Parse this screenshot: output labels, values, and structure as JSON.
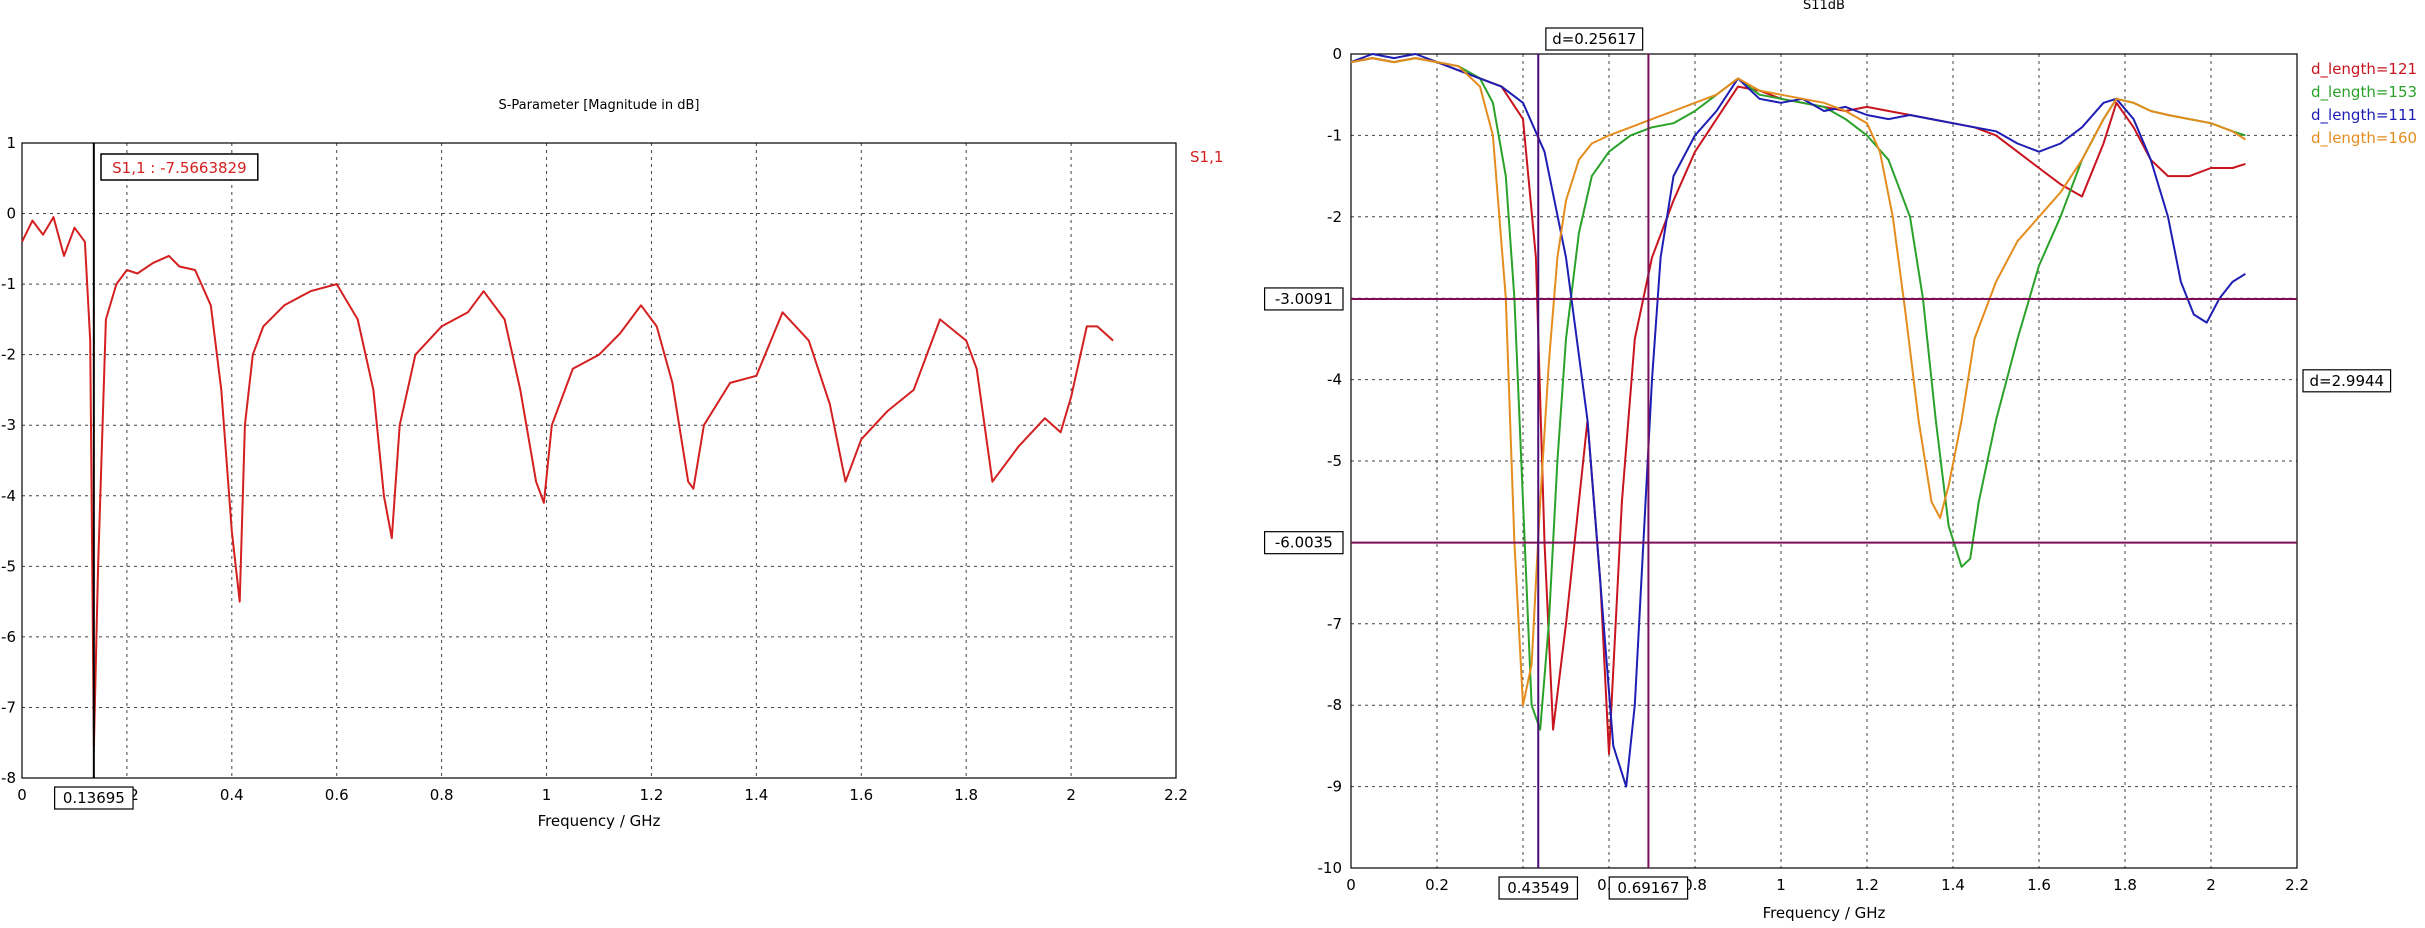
{
  "chart_data": [
    {
      "type": "line",
      "title": "S-Parameter [Magnitude in dB]",
      "xlabel": "Frequency / GHz",
      "ylabel": "",
      "xlim": [
        0,
        2.2
      ],
      "ylim": [
        -8,
        1
      ],
      "xticks": [
        "0",
        "0.2",
        "0.4",
        "0.6",
        "0.8",
        "1",
        "1.2",
        "1.4",
        "1.6",
        "1.8",
        "2",
        "2.2"
      ],
      "yticks": [
        "1",
        "0",
        "-1",
        "-2",
        "-3",
        "-4",
        "-5",
        "-6",
        "-7",
        "-8"
      ],
      "grid": true,
      "legend": "top-right",
      "series": [
        {
          "name": "S1,1",
          "color": "#d42020",
          "x": [
            0,
            0.02,
            0.04,
            0.06,
            0.08,
            0.1,
            0.12,
            0.13,
            0.137,
            0.145,
            0.16,
            0.18,
            0.2,
            0.22,
            0.25,
            0.28,
            0.3,
            0.33,
            0.36,
            0.38,
            0.4,
            0.415,
            0.425,
            0.44,
            0.46,
            0.5,
            0.55,
            0.6,
            0.64,
            0.67,
            0.69,
            0.705,
            0.72,
            0.75,
            0.8,
            0.85,
            0.88,
            0.92,
            0.95,
            0.98,
            0.995,
            1.01,
            1.05,
            1.1,
            1.14,
            1.18,
            1.21,
            1.24,
            1.27,
            1.28,
            1.3,
            1.35,
            1.4,
            1.45,
            1.5,
            1.54,
            1.57,
            1.6,
            1.65,
            1.7,
            1.75,
            1.8,
            1.82,
            1.85,
            1.9,
            1.95,
            1.98,
            2.0,
            2.03,
            2.05,
            2.08
          ],
          "y": [
            -0.4,
            -0.1,
            -0.3,
            -0.05,
            -0.6,
            -0.2,
            -0.4,
            -1.8,
            -7.55,
            -5.0,
            -1.5,
            -1.0,
            -0.8,
            -0.85,
            -0.7,
            -0.6,
            -0.75,
            -0.8,
            -1.3,
            -2.5,
            -4.5,
            -5.5,
            -3.0,
            -2.0,
            -1.6,
            -1.3,
            -1.1,
            -1.0,
            -1.5,
            -2.5,
            -4.0,
            -4.6,
            -3.0,
            -2.0,
            -1.6,
            -1.4,
            -1.1,
            -1.5,
            -2.5,
            -3.8,
            -4.1,
            -3.0,
            -2.2,
            -2.0,
            -1.7,
            -1.3,
            -1.6,
            -2.4,
            -3.8,
            -3.9,
            -3.0,
            -2.4,
            -2.3,
            -1.4,
            -1.8,
            -2.7,
            -3.8,
            -3.2,
            -2.8,
            -2.5,
            -1.5,
            -1.8,
            -2.2,
            -3.8,
            -3.3,
            -2.9,
            -3.1,
            -2.6,
            -1.6,
            -1.6,
            -1.8
          ]
        }
      ],
      "markers": [
        {
          "x": 0.13695,
          "label": "0.13695"
        },
        {
          "label": "S1,1 : -7.5663829"
        }
      ]
    },
    {
      "type": "line",
      "title": "S11dB",
      "xlabel": "Frequency / GHz",
      "ylabel": "",
      "xlim": [
        0,
        2.2
      ],
      "ylim": [
        -10,
        0
      ],
      "xticks": [
        "0",
        "0.2",
        "0.4",
        "0.6",
        "0.8",
        "1",
        "1.2",
        "1.4",
        "1.6",
        "1.8",
        "2",
        "2.2"
      ],
      "yticks": [
        "0",
        "-1",
        "-2",
        "-3",
        "-4",
        "-5",
        "-6",
        "-7",
        "-8",
        "-9",
        "-10"
      ],
      "grid": true,
      "legend": "top-right",
      "series": [
        {
          "name": "d_length=121",
          "color": "#c8141e",
          "x": [
            0,
            0.05,
            0.1,
            0.15,
            0.2,
            0.25,
            0.3,
            0.35,
            0.4,
            0.43,
            0.45,
            0.47,
            0.5,
            0.55,
            0.58,
            0.6,
            0.63,
            0.66,
            0.7,
            0.75,
            0.8,
            0.85,
            0.9,
            0.95,
            1.0,
            1.05,
            1.1,
            1.15,
            1.2,
            1.25,
            1.3,
            1.35,
            1.4,
            1.45,
            1.5,
            1.55,
            1.6,
            1.65,
            1.7,
            1.75,
            1.78,
            1.82,
            1.86,
            1.9,
            1.95,
            2.0,
            2.05,
            2.08
          ],
          "y": [
            -0.1,
            -0.05,
            -0.1,
            -0.05,
            -0.1,
            -0.2,
            -0.3,
            -0.4,
            -0.8,
            -2.5,
            -6.0,
            -8.3,
            -7.0,
            -4.5,
            -6.5,
            -8.6,
            -5.5,
            -3.5,
            -2.5,
            -1.8,
            -1.2,
            -0.8,
            -0.4,
            -0.45,
            -0.55,
            -0.6,
            -0.65,
            -0.7,
            -0.65,
            -0.7,
            -0.75,
            -0.8,
            -0.85,
            -0.9,
            -1.0,
            -1.2,
            -1.4,
            -1.6,
            -1.75,
            -1.1,
            -0.6,
            -0.9,
            -1.3,
            -1.5,
            -1.5,
            -1.4,
            -1.4,
            -1.35
          ]
        },
        {
          "name": "d_length=153",
          "color": "#2aa22a",
          "x": [
            0,
            0.05,
            0.1,
            0.15,
            0.2,
            0.25,
            0.3,
            0.33,
            0.36,
            0.38,
            0.4,
            0.42,
            0.44,
            0.46,
            0.48,
            0.5,
            0.53,
            0.56,
            0.6,
            0.65,
            0.7,
            0.75,
            0.8,
            0.85,
            0.9,
            0.95,
            1.0,
            1.05,
            1.1,
            1.15,
            1.2,
            1.25,
            1.3,
            1.33,
            1.36,
            1.39,
            1.42,
            1.44,
            1.46,
            1.5,
            1.55,
            1.6,
            1.65,
            1.7,
            1.75,
            1.78,
            1.82,
            1.86,
            1.9,
            1.95,
            2.0,
            2.05,
            2.08
          ],
          "y": [
            -0.1,
            -0.05,
            -0.1,
            -0.05,
            -0.1,
            -0.15,
            -0.3,
            -0.6,
            -1.5,
            -3.0,
            -5.5,
            -8.0,
            -8.3,
            -7.0,
            -5.0,
            -3.5,
            -2.2,
            -1.5,
            -1.2,
            -1.0,
            -0.9,
            -0.85,
            -0.7,
            -0.5,
            -0.3,
            -0.5,
            -0.55,
            -0.6,
            -0.65,
            -0.8,
            -1.0,
            -1.3,
            -2.0,
            -3.0,
            -4.5,
            -5.8,
            -6.3,
            -6.2,
            -5.5,
            -4.5,
            -3.5,
            -2.6,
            -2.0,
            -1.3,
            -0.8,
            -0.55,
            -0.6,
            -0.7,
            -0.75,
            -0.8,
            -0.85,
            -0.95,
            -1.0
          ]
        },
        {
          "name": "d_length=111",
          "color": "#1e1eb4",
          "x": [
            0,
            0.05,
            0.1,
            0.15,
            0.2,
            0.25,
            0.3,
            0.35,
            0.4,
            0.45,
            0.5,
            0.55,
            0.58,
            0.61,
            0.64,
            0.66,
            0.68,
            0.7,
            0.72,
            0.75,
            0.8,
            0.85,
            0.9,
            0.95,
            1.0,
            1.05,
            1.1,
            1.15,
            1.2,
            1.25,
            1.3,
            1.35,
            1.4,
            1.45,
            1.5,
            1.55,
            1.6,
            1.65,
            1.7,
            1.75,
            1.78,
            1.82,
            1.86,
            1.9,
            1.93,
            1.96,
            1.99,
            2.02,
            2.05,
            2.08
          ],
          "y": [
            -0.1,
            0.0,
            -0.05,
            0.0,
            -0.1,
            -0.2,
            -0.3,
            -0.4,
            -0.6,
            -1.2,
            -2.5,
            -4.5,
            -6.5,
            -8.5,
            -9.0,
            -8.0,
            -6.0,
            -4.0,
            -2.5,
            -1.5,
            -1.0,
            -0.7,
            -0.3,
            -0.55,
            -0.6,
            -0.55,
            -0.7,
            -0.65,
            -0.75,
            -0.8,
            -0.75,
            -0.8,
            -0.85,
            -0.9,
            -0.95,
            -1.1,
            -1.2,
            -1.1,
            -0.9,
            -0.6,
            -0.55,
            -0.8,
            -1.3,
            -2.0,
            -2.8,
            -3.2,
            -3.3,
            -3.0,
            -2.8,
            -2.7
          ]
        },
        {
          "name": "d_length=160",
          "color": "#e48c1e",
          "x": [
            0,
            0.05,
            0.1,
            0.15,
            0.2,
            0.25,
            0.3,
            0.33,
            0.36,
            0.38,
            0.4,
            0.42,
            0.44,
            0.46,
            0.48,
            0.5,
            0.53,
            0.56,
            0.6,
            0.65,
            0.7,
            0.75,
            0.8,
            0.85,
            0.9,
            0.95,
            1.0,
            1.05,
            1.1,
            1.15,
            1.2,
            1.23,
            1.26,
            1.29,
            1.32,
            1.35,
            1.37,
            1.39,
            1.42,
            1.45,
            1.5,
            1.55,
            1.6,
            1.65,
            1.7,
            1.75,
            1.78,
            1.82,
            1.86,
            1.9,
            1.95,
            2.0,
            2.05,
            2.08
          ],
          "y": [
            -0.1,
            -0.05,
            -0.1,
            -0.05,
            -0.1,
            -0.15,
            -0.4,
            -1.0,
            -3.0,
            -6.0,
            -8.0,
            -7.5,
            -5.5,
            -3.8,
            -2.5,
            -1.8,
            -1.3,
            -1.1,
            -1.0,
            -0.9,
            -0.8,
            -0.7,
            -0.6,
            -0.5,
            -0.3,
            -0.45,
            -0.5,
            -0.55,
            -0.6,
            -0.7,
            -0.85,
            -1.2,
            -2.0,
            -3.2,
            -4.5,
            -5.5,
            -5.7,
            -5.3,
            -4.5,
            -3.5,
            -2.8,
            -2.3,
            -2.0,
            -1.7,
            -1.3,
            -0.8,
            -0.55,
            -0.6,
            -0.7,
            -0.75,
            -0.8,
            -0.85,
            -0.95,
            -1.05
          ]
        }
      ],
      "markers": [
        {
          "axis": "y",
          "y": -3.0091,
          "label": "-3.0091",
          "color": "#7d0e5a"
        },
        {
          "axis": "y",
          "y": -6.0035,
          "label": "-6.0035",
          "color": "#7d0e5a"
        },
        {
          "axis": "x",
          "x": 0.43549,
          "label": "0.43549",
          "color": "#4b0a78"
        },
        {
          "axis": "x",
          "x": 0.69167,
          "label": "0.69167",
          "color": "#7d0e5a"
        },
        {
          "label": "d=0.25617"
        },
        {
          "label": "d=2.9944"
        }
      ]
    }
  ]
}
